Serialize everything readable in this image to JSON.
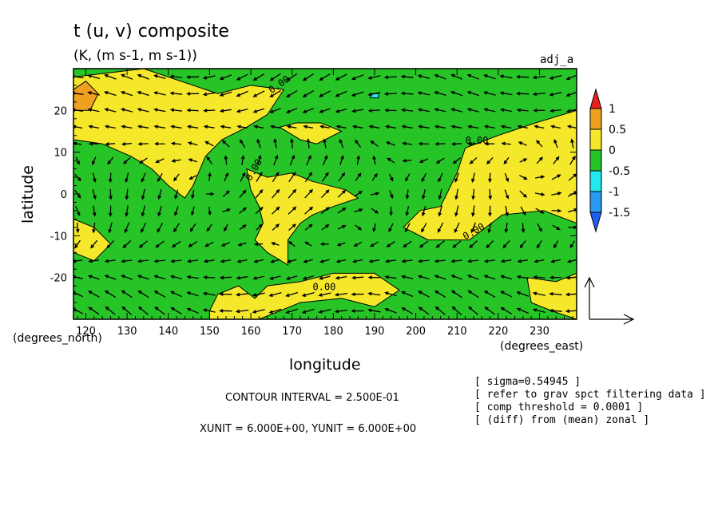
{
  "header": {
    "title": "t (u, v) composite",
    "units": "(K, (m s-1, m s-1))",
    "run_label": "adj_a"
  },
  "axes": {
    "xlabel": "longitude",
    "ylabel": "latitude",
    "x_unit_label": "(degrees_east)",
    "y_unit_label": "(degrees_north)"
  },
  "colorbar": {
    "levels": [
      "1",
      "0.5",
      "0",
      "-0.5",
      "-1",
      "-1.5"
    ],
    "colors": [
      "#e8201c",
      "#f0a020",
      "#f5e82a",
      "#27c427",
      "#22e8f0",
      "#2a9af0",
      "#1f5ef0"
    ]
  },
  "footer": {
    "contour_interval": "CONTOUR INTERVAL = 2.500E-01",
    "vector_units": "XUNIT = 6.000E+00, YUNIT = 6.000E+00"
  },
  "notes": [
    "[ sigma=0.54945 ]",
    "[ refer to grav spct filtering data ]",
    "[ comp threshold = 0.0001 ]",
    "[ (diff) from (mean) zonal ]"
  ],
  "contour_labels": [
    "0.00",
    "0.00",
    "0.00",
    "0.00",
    "0.00"
  ],
  "chart_data": {
    "type": "heatmap",
    "title": "t (u, v) composite",
    "xlabel": "longitude",
    "ylabel": "latitude",
    "xlim": [
      117,
      239
    ],
    "ylim": [
      -30,
      30
    ],
    "x_ticks": [
      120,
      130,
      140,
      150,
      160,
      170,
      180,
      190,
      200,
      210,
      220,
      230
    ],
    "y_ticks": [
      20,
      10,
      0,
      -10,
      -20
    ],
    "contour_interval": 0.25,
    "color_levels": [
      1,
      0.5,
      0,
      -0.5,
      -1,
      -1.5
    ],
    "fill_colors": {
      "above_1": "#e8201c",
      "0.5_to_1": "#f0a020",
      "0_to_0.5": "#f5e82a",
      "-0.5_to_0": "#27c427",
      "-1_to_-0.5": "#22e8f0",
      "-1.5_to_-1": "#2a9af0",
      "below_-1.5": "#1f5ef0"
    },
    "field_regions": [
      {
        "range": "0_to_0.5",
        "polygon": [
          [
            117,
            28
          ],
          [
            134,
            30
          ],
          [
            146,
            26
          ],
          [
            152,
            24
          ],
          [
            160,
            26
          ],
          [
            168,
            25
          ],
          [
            166,
            22
          ],
          [
            164,
            19
          ],
          [
            159,
            16
          ],
          [
            153,
            13
          ],
          [
            149,
            9
          ],
          [
            146,
            2
          ],
          [
            144,
            -1
          ],
          [
            140,
            2
          ],
          [
            136,
            6
          ],
          [
            131,
            9
          ],
          [
            124,
            12
          ],
          [
            117,
            13
          ]
        ]
      },
      {
        "range": "0_to_0.5",
        "polygon": [
          [
            117,
            -6
          ],
          [
            122,
            -8
          ],
          [
            126,
            -12
          ],
          [
            122,
            -16
          ],
          [
            117,
            -14
          ]
        ]
      },
      {
        "range": "0_to_0.5",
        "polygon": [
          [
            159,
            6
          ],
          [
            164,
            4
          ],
          [
            170,
            5
          ],
          [
            175,
            3
          ],
          [
            183,
            1
          ],
          [
            186,
            -1
          ],
          [
            180,
            -3
          ],
          [
            175,
            -5
          ],
          [
            172,
            -7
          ],
          [
            169,
            -11
          ],
          [
            169,
            -17
          ],
          [
            164,
            -14
          ],
          [
            161,
            -11
          ],
          [
            163,
            -7
          ],
          [
            162,
            -3
          ],
          [
            160,
            1
          ]
        ]
      },
      {
        "range": "0_to_0.5",
        "polygon": [
          [
            167,
            16
          ],
          [
            172,
            13
          ],
          [
            176,
            12
          ],
          [
            182,
            15
          ],
          [
            177,
            17
          ],
          [
            171,
            17
          ]
        ]
      },
      {
        "range": "0_to_0.5",
        "polygon": [
          [
            150,
            -28
          ],
          [
            152,
            -24
          ],
          [
            157,
            -22
          ],
          [
            161,
            -25
          ],
          [
            164,
            -22
          ],
          [
            172,
            -21
          ],
          [
            180,
            -19
          ],
          [
            190,
            -19
          ],
          [
            196,
            -23
          ],
          [
            190,
            -27
          ],
          [
            182,
            -25
          ],
          [
            172,
            -26
          ],
          [
            162,
            -30
          ],
          [
            150,
            -30
          ]
        ]
      },
      {
        "range": "0_to_0.5",
        "polygon": [
          [
            239,
            20
          ],
          [
            229,
            17
          ],
          [
            220,
            14
          ],
          [
            212,
            11
          ],
          [
            210,
            5
          ],
          [
            206,
            -3
          ],
          [
            201,
            -4
          ],
          [
            197,
            -8
          ],
          [
            203,
            -11
          ],
          [
            213,
            -11
          ],
          [
            221,
            -5
          ],
          [
            231,
            -4
          ],
          [
            239,
            -7
          ]
        ]
      },
      {
        "range": "0_to_0.5",
        "polygon": [
          [
            227,
            -20
          ],
          [
            234,
            -21
          ],
          [
            239,
            -19
          ],
          [
            239,
            -30
          ],
          [
            233,
            -28
          ],
          [
            228,
            -26
          ]
        ]
      },
      {
        "range": "0.5_to_1",
        "polygon": [
          [
            117,
            25
          ],
          [
            120,
            27
          ],
          [
            123,
            24
          ],
          [
            121,
            20
          ],
          [
            117,
            20
          ]
        ]
      },
      {
        "range": "-1_to_-0.5",
        "polygon": [
          [
            189,
            24
          ],
          [
            191,
            24
          ],
          [
            191,
            23
          ],
          [
            189,
            23
          ]
        ]
      }
    ],
    "vector_field": {
      "variables": [
        "u",
        "v"
      ],
      "units": "m s-1",
      "xunit": 6.0,
      "yunit": 6.0
    }
  }
}
